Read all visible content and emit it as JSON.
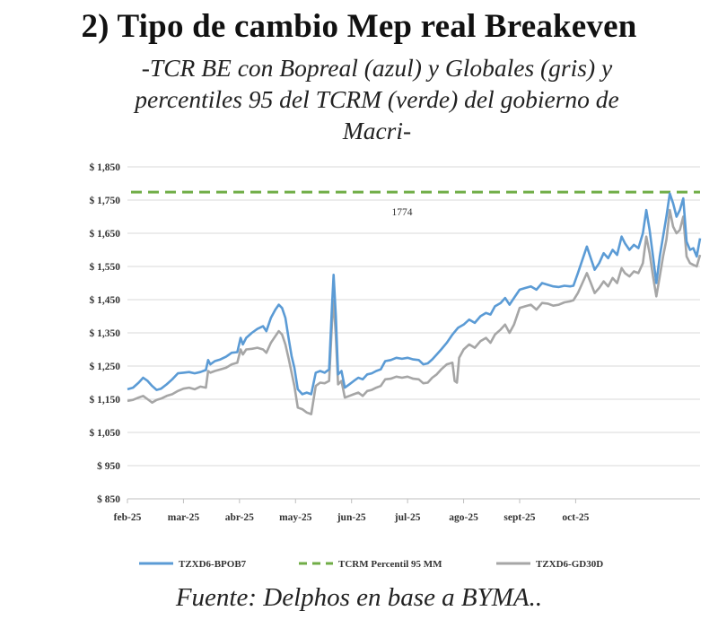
{
  "title": "2)  Tipo de cambio Mep real Breakeven",
  "subtitle_lines": [
    "-TCR BE con Bopreal (azul) y Globales (gris) y",
    "percentiles 95 del TCRM (verde) del gobierno de",
    "Macri-"
  ],
  "source": "Fuente:  Delphos en base a BYMA..",
  "chart_data": {
    "type": "line",
    "title": "",
    "xlabel": "",
    "ylabel": "",
    "ylim": [
      850,
      1850
    ],
    "y_ticks": [
      850,
      950,
      1050,
      1150,
      1250,
      1350,
      1450,
      1550,
      1650,
      1750,
      1850
    ],
    "y_tick_labels": [
      "$ 850",
      "$ 950",
      "$ 1,050",
      "$ 1,150",
      "$ 1,250",
      "$ 1,350",
      "$ 1,450",
      "$ 1,550",
      "$ 1,650",
      "$ 1,750",
      "$ 1,850"
    ],
    "x_tick_labels": [
      "feb-25",
      "mar-25",
      "abr-25",
      "may-25",
      "jun-25",
      "jul-25",
      "ago-25",
      "sept-25",
      "oct-25"
    ],
    "grid": "horizontal",
    "legend_position": "bottom",
    "annotation": "1774",
    "series": [
      {
        "name": "TZXD6-BPOB7",
        "color": "#5b9bd5",
        "style": "solid",
        "points": [
          [
            0.0,
            1180
          ],
          [
            0.1,
            1185
          ],
          [
            0.2,
            1200
          ],
          [
            0.28,
            1215
          ],
          [
            0.36,
            1205
          ],
          [
            0.44,
            1190
          ],
          [
            0.52,
            1178
          ],
          [
            0.6,
            1182
          ],
          [
            0.7,
            1195
          ],
          [
            0.8,
            1210
          ],
          [
            0.9,
            1228
          ],
          [
            1.0,
            1230
          ],
          [
            1.1,
            1232
          ],
          [
            1.2,
            1228
          ],
          [
            1.3,
            1232
          ],
          [
            1.4,
            1238
          ],
          [
            1.44,
            1268
          ],
          [
            1.48,
            1255
          ],
          [
            1.56,
            1265
          ],
          [
            1.66,
            1270
          ],
          [
            1.76,
            1278
          ],
          [
            1.86,
            1290
          ],
          [
            1.96,
            1292
          ],
          [
            2.02,
            1335
          ],
          [
            2.06,
            1315
          ],
          [
            2.12,
            1335
          ],
          [
            2.22,
            1350
          ],
          [
            2.32,
            1362
          ],
          [
            2.42,
            1370
          ],
          [
            2.48,
            1355
          ],
          [
            2.56,
            1395
          ],
          [
            2.64,
            1420
          ],
          [
            2.7,
            1435
          ],
          [
            2.76,
            1425
          ],
          [
            2.82,
            1395
          ],
          [
            2.88,
            1330
          ],
          [
            2.93,
            1280
          ],
          [
            2.98,
            1245
          ],
          [
            3.04,
            1180
          ],
          [
            3.12,
            1165
          ],
          [
            3.2,
            1170
          ],
          [
            3.28,
            1165
          ],
          [
            3.36,
            1230
          ],
          [
            3.44,
            1235
          ],
          [
            3.52,
            1230
          ],
          [
            3.6,
            1240
          ],
          [
            3.65,
            1430
          ],
          [
            3.68,
            1525
          ],
          [
            3.72,
            1400
          ],
          [
            3.76,
            1225
          ],
          [
            3.82,
            1235
          ],
          [
            3.88,
            1185
          ],
          [
            3.96,
            1195
          ],
          [
            4.04,
            1205
          ],
          [
            4.12,
            1215
          ],
          [
            4.2,
            1210
          ],
          [
            4.28,
            1225
          ],
          [
            4.36,
            1228
          ],
          [
            4.44,
            1235
          ],
          [
            4.52,
            1240
          ],
          [
            4.6,
            1265
          ],
          [
            4.7,
            1268
          ],
          [
            4.8,
            1275
          ],
          [
            4.9,
            1272
          ],
          [
            5.0,
            1275
          ],
          [
            5.1,
            1270
          ],
          [
            5.2,
            1268
          ],
          [
            5.28,
            1255
          ],
          [
            5.36,
            1258
          ],
          [
            5.44,
            1270
          ],
          [
            5.52,
            1285
          ],
          [
            5.6,
            1300
          ],
          [
            5.7,
            1320
          ],
          [
            5.8,
            1345
          ],
          [
            5.9,
            1365
          ],
          [
            6.0,
            1375
          ],
          [
            6.1,
            1390
          ],
          [
            6.2,
            1380
          ],
          [
            6.3,
            1400
          ],
          [
            6.4,
            1410
          ],
          [
            6.48,
            1405
          ],
          [
            6.56,
            1430
          ],
          [
            6.66,
            1440
          ],
          [
            6.74,
            1455
          ],
          [
            6.82,
            1435
          ],
          [
            6.9,
            1455
          ],
          [
            7.0,
            1480
          ],
          [
            7.1,
            1485
          ],
          [
            7.2,
            1490
          ],
          [
            7.3,
            1480
          ],
          [
            7.4,
            1500
          ],
          [
            7.5,
            1495
          ],
          [
            7.6,
            1490
          ],
          [
            7.7,
            1488
          ],
          [
            7.8,
            1492
          ],
          [
            7.9,
            1490
          ],
          [
            7.96,
            1492
          ],
          [
            8.04,
            1530
          ],
          [
            8.12,
            1570
          ],
          [
            8.2,
            1610
          ],
          [
            8.26,
            1580
          ],
          [
            8.34,
            1540
          ],
          [
            8.42,
            1560
          ],
          [
            8.5,
            1590
          ],
          [
            8.58,
            1575
          ],
          [
            8.66,
            1600
          ],
          [
            8.74,
            1585
          ],
          [
            8.82,
            1640
          ],
          [
            8.88,
            1620
          ],
          [
            8.96,
            1600
          ],
          [
            9.04,
            1615
          ],
          [
            9.12,
            1605
          ],
          [
            9.2,
            1650
          ],
          [
            9.26,
            1720
          ],
          [
            9.32,
            1660
          ],
          [
            9.38,
            1580
          ],
          [
            9.44,
            1500
          ],
          [
            9.5,
            1580
          ],
          [
            9.56,
            1640
          ],
          [
            9.62,
            1700
          ],
          [
            9.68,
            1770
          ],
          [
            9.74,
            1740
          ],
          [
            9.8,
            1700
          ],
          [
            9.86,
            1720
          ],
          [
            9.92,
            1755
          ],
          [
            9.98,
            1625
          ],
          [
            10.04,
            1600
          ],
          [
            10.1,
            1605
          ],
          [
            10.16,
            1580
          ],
          [
            10.22,
            1635
          ]
        ]
      },
      {
        "name": "TCRM Percentil 95 MM",
        "color": "#70ad47",
        "style": "dashed",
        "value": 1774
      },
      {
        "name": "TZXD6-GD30D",
        "color": "#a6a6a6",
        "style": "solid",
        "points": [
          [
            0.0,
            1145
          ],
          [
            0.1,
            1148
          ],
          [
            0.2,
            1155
          ],
          [
            0.28,
            1160
          ],
          [
            0.36,
            1150
          ],
          [
            0.44,
            1140
          ],
          [
            0.52,
            1148
          ],
          [
            0.6,
            1152
          ],
          [
            0.7,
            1160
          ],
          [
            0.8,
            1165
          ],
          [
            0.9,
            1175
          ],
          [
            1.0,
            1182
          ],
          [
            1.1,
            1185
          ],
          [
            1.2,
            1180
          ],
          [
            1.3,
            1188
          ],
          [
            1.4,
            1185
          ],
          [
            1.44,
            1235
          ],
          [
            1.48,
            1230
          ],
          [
            1.56,
            1235
          ],
          [
            1.66,
            1240
          ],
          [
            1.76,
            1245
          ],
          [
            1.86,
            1255
          ],
          [
            1.96,
            1260
          ],
          [
            2.02,
            1300
          ],
          [
            2.06,
            1285
          ],
          [
            2.12,
            1300
          ],
          [
            2.22,
            1302
          ],
          [
            2.32,
            1305
          ],
          [
            2.42,
            1300
          ],
          [
            2.48,
            1290
          ],
          [
            2.56,
            1320
          ],
          [
            2.64,
            1340
          ],
          [
            2.7,
            1355
          ],
          [
            2.76,
            1345
          ],
          [
            2.82,
            1315
          ],
          [
            2.88,
            1270
          ],
          [
            2.93,
            1230
          ],
          [
            2.98,
            1190
          ],
          [
            3.04,
            1125
          ],
          [
            3.12,
            1120
          ],
          [
            3.2,
            1110
          ],
          [
            3.28,
            1105
          ],
          [
            3.36,
            1190
          ],
          [
            3.44,
            1200
          ],
          [
            3.52,
            1198
          ],
          [
            3.6,
            1205
          ],
          [
            3.65,
            1380
          ],
          [
            3.68,
            1450
          ],
          [
            3.72,
            1340
          ],
          [
            3.76,
            1195
          ],
          [
            3.82,
            1205
          ],
          [
            3.88,
            1155
          ],
          [
            3.96,
            1160
          ],
          [
            4.04,
            1165
          ],
          [
            4.12,
            1170
          ],
          [
            4.2,
            1160
          ],
          [
            4.28,
            1175
          ],
          [
            4.36,
            1178
          ],
          [
            4.44,
            1185
          ],
          [
            4.52,
            1190
          ],
          [
            4.6,
            1210
          ],
          [
            4.7,
            1212
          ],
          [
            4.8,
            1218
          ],
          [
            4.9,
            1215
          ],
          [
            5.0,
            1218
          ],
          [
            5.1,
            1212
          ],
          [
            5.2,
            1210
          ],
          [
            5.28,
            1198
          ],
          [
            5.36,
            1200
          ],
          [
            5.44,
            1215
          ],
          [
            5.52,
            1225
          ],
          [
            5.6,
            1240
          ],
          [
            5.7,
            1255
          ],
          [
            5.8,
            1260
          ],
          [
            5.84,
            1205
          ],
          [
            5.88,
            1200
          ],
          [
            5.92,
            1275
          ],
          [
            6.0,
            1300
          ],
          [
            6.1,
            1315
          ],
          [
            6.2,
            1305
          ],
          [
            6.3,
            1325
          ],
          [
            6.4,
            1335
          ],
          [
            6.48,
            1320
          ],
          [
            6.56,
            1345
          ],
          [
            6.66,
            1360
          ],
          [
            6.74,
            1375
          ],
          [
            6.82,
            1350
          ],
          [
            6.9,
            1375
          ],
          [
            7.0,
            1425
          ],
          [
            7.1,
            1430
          ],
          [
            7.2,
            1435
          ],
          [
            7.3,
            1420
          ],
          [
            7.4,
            1440
          ],
          [
            7.5,
            1438
          ],
          [
            7.6,
            1432
          ],
          [
            7.7,
            1435
          ],
          [
            7.8,
            1442
          ],
          [
            7.9,
            1445
          ],
          [
            7.96,
            1448
          ],
          [
            8.04,
            1470
          ],
          [
            8.12,
            1500
          ],
          [
            8.2,
            1530
          ],
          [
            8.26,
            1505
          ],
          [
            8.34,
            1470
          ],
          [
            8.42,
            1485
          ],
          [
            8.5,
            1505
          ],
          [
            8.58,
            1490
          ],
          [
            8.66,
            1515
          ],
          [
            8.74,
            1500
          ],
          [
            8.82,
            1545
          ],
          [
            8.88,
            1530
          ],
          [
            8.96,
            1520
          ],
          [
            9.04,
            1535
          ],
          [
            9.12,
            1530
          ],
          [
            9.2,
            1560
          ],
          [
            9.26,
            1640
          ],
          [
            9.32,
            1590
          ],
          [
            9.38,
            1520
          ],
          [
            9.44,
            1460
          ],
          [
            9.5,
            1520
          ],
          [
            9.56,
            1580
          ],
          [
            9.62,
            1630
          ],
          [
            9.68,
            1720
          ],
          [
            9.74,
            1670
          ],
          [
            9.8,
            1650
          ],
          [
            9.86,
            1660
          ],
          [
            9.92,
            1700
          ],
          [
            9.98,
            1580
          ],
          [
            10.04,
            1560
          ],
          [
            10.1,
            1555
          ],
          [
            10.16,
            1550
          ],
          [
            10.22,
            1585
          ]
        ]
      }
    ]
  }
}
